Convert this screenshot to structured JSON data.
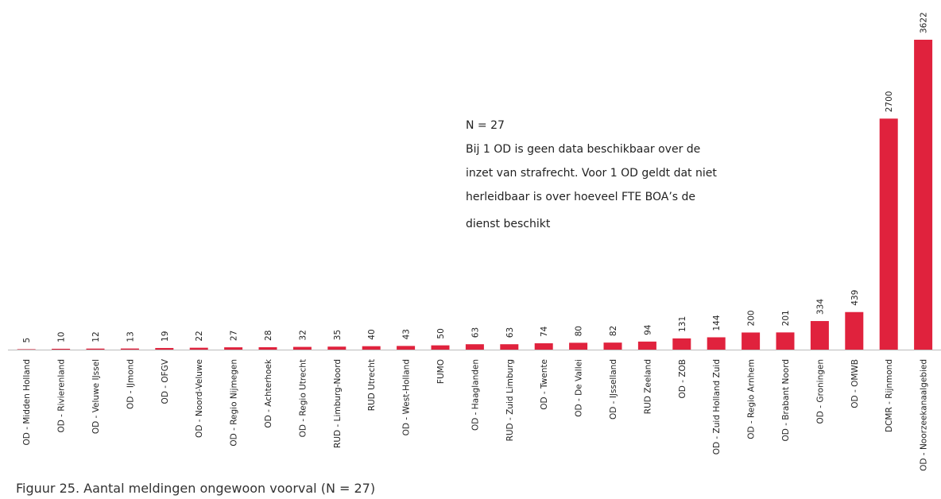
{
  "chart_data": {
    "type": "bar",
    "categories": [
      "OD - Midden Holland",
      "OD - Rivierenland",
      "OD - Veluwe IJssel",
      "OD - IJmond",
      "OD - OFGV",
      "OD - Noord-Veluwe",
      "OD - Regio Nijmegen",
      "OD - Achterhoek",
      "OD - Regio Utrecht",
      "RUD - Limburg-Noord",
      "RUD Utrecht",
      "OD - West-Holland",
      "FUMO",
      "OD - Haaglanden",
      "RUD - Zuid Limburg",
      "OD - Twente",
      "OD - De Vallei",
      "OD - IJsselland",
      "RUD Zeeland",
      "OD - ZOB",
      "OD - Zuid Holland Zuid",
      "OD - Regio Arnhem",
      "OD - Brabant Noord",
      "OD - Groningen",
      "OD - OMWB",
      "DCMR - Rijnmond",
      "OD - Noorzeekanaalgebied"
    ],
    "values": [
      5,
      10,
      12,
      13,
      19,
      22,
      27,
      28,
      32,
      35,
      40,
      43,
      50,
      63,
      63,
      74,
      80,
      82,
      94,
      131,
      144,
      200,
      201,
      334,
      439,
      2700,
      3622
    ],
    "color": "#e0223d",
    "annotation": [
      "N = 27",
      "Bij 1 OD is geen data beschikbaar over de",
      "inzet van strafrecht. Voor 1 OD geldt dat niet",
      "herleidbaar is over hoeveel FTE BOA’s de",
      "dienst beschikt"
    ],
    "caption": "Figuur 25. Aantal meldingen ongewoon voorval (N = 27)"
  }
}
